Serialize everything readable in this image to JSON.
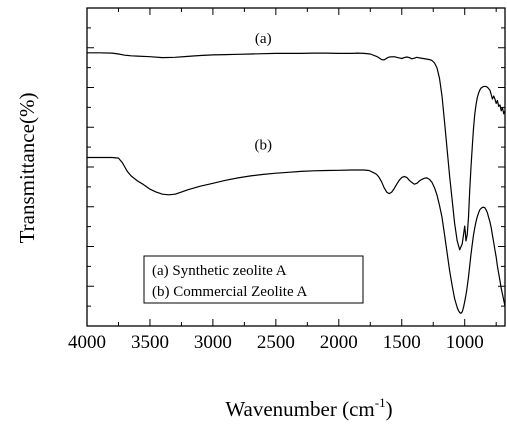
{
  "chart_data": {
    "type": "line",
    "title": "",
    "xlabel": "Wavenumber (cm",
    "xlabel_superscript": "-1",
    "xlabel_suffix": ")",
    "ylabel": "Transmittance(%)",
    "x_reversed": true,
    "xlim": [
      4000,
      680
    ],
    "ylim": [
      0,
      100
    ],
    "y_tick_labels_shown": false,
    "x_ticks": [
      4000,
      3500,
      3000,
      2500,
      2000,
      1500,
      1000
    ],
    "x_tick_labels": [
      "4000",
      "3500",
      "3000",
      "2500",
      "2000",
      "1500",
      "1000"
    ],
    "grid": false,
    "legend": {
      "placement": "bottom-center",
      "entries": [
        "(a) Synthetic zeolite A",
        "(b) Commercial Zeolite A"
      ]
    },
    "series": [
      {
        "name": "(a)",
        "color": "#000000",
        "label_at": [
          2600,
          92
        ],
        "x": [
          4000,
          3900,
          3800,
          3750,
          3700,
          3650,
          3600,
          3500,
          3400,
          3300,
          3200,
          3100,
          3000,
          2900,
          2800,
          2700,
          2600,
          2500,
          2400,
          2300,
          2200,
          2100,
          2000,
          1900,
          1850,
          1800,
          1750,
          1700,
          1680,
          1660,
          1640,
          1620,
          1600,
          1560,
          1520,
          1500,
          1480,
          1460,
          1440,
          1420,
          1400,
          1380,
          1360,
          1330,
          1300,
          1280,
          1260,
          1240,
          1220,
          1200,
          1180,
          1160,
          1140,
          1120,
          1100,
          1080,
          1060,
          1040,
          1020,
          1010,
          1000,
          995,
          990,
          980,
          970,
          960,
          950,
          940,
          930,
          920,
          910,
          900,
          890,
          880,
          870,
          860,
          850,
          840,
          830,
          820,
          810,
          800,
          790,
          780,
          770,
          760,
          750,
          740,
          730,
          720,
          710,
          700,
          690,
          680
        ],
        "y": [
          88.6,
          88.6,
          88.5,
          88.2,
          87.8,
          87.6,
          87.5,
          87.3,
          87.0,
          87.1,
          87.4,
          87.7,
          87.9,
          88.0,
          88.1,
          88.2,
          88.3,
          88.4,
          88.4,
          88.4,
          88.5,
          88.5,
          88.4,
          88.4,
          88.5,
          88.4,
          88.2,
          87.4,
          86.9,
          86.3,
          86.2,
          86.8,
          87.2,
          87.3,
          86.9,
          86.7,
          87.0,
          87.2,
          87.0,
          86.6,
          86.8,
          87.1,
          86.9,
          86.7,
          86.5,
          86.3,
          86.0,
          85.2,
          83.5,
          80.0,
          74.0,
          65.0,
          56.0,
          47.0,
          39.0,
          31.0,
          25.0,
          22.0,
          24.0,
          27.0,
          30.0,
          28.0,
          25.0,
          27.0,
          33.0,
          42.0,
          50.0,
          57.0,
          63.0,
          68.0,
          71.0,
          73.5,
          75.0,
          76.0,
          76.7,
          77.0,
          77.2,
          77.3,
          77.2,
          77.0,
          76.5,
          76.0,
          74.5,
          73.0,
          74.0,
          73.0,
          71.5,
          72.5,
          70.5,
          71.0,
          69.0,
          70.0,
          68.0,
          69.0
        ]
      },
      {
        "name": "(b)",
        "color": "#000000",
        "label_at": [
          2600,
          56
        ],
        "x": [
          4000,
          3900,
          3800,
          3750,
          3720,
          3700,
          3680,
          3650,
          3600,
          3550,
          3500,
          3450,
          3400,
          3350,
          3300,
          3250,
          3200,
          3100,
          3000,
          2900,
          2800,
          2700,
          2600,
          2500,
          2400,
          2300,
          2200,
          2100,
          2000,
          1900,
          1850,
          1800,
          1760,
          1720,
          1700,
          1680,
          1660,
          1640,
          1620,
          1600,
          1580,
          1560,
          1540,
          1520,
          1500,
          1480,
          1460,
          1440,
          1420,
          1400,
          1380,
          1360,
          1340,
          1320,
          1300,
          1280,
          1260,
          1240,
          1220,
          1200,
          1180,
          1160,
          1140,
          1120,
          1100,
          1080,
          1060,
          1050,
          1040,
          1030,
          1020,
          1010,
          1000,
          990,
          980,
          970,
          960,
          950,
          940,
          930,
          920,
          910,
          900,
          890,
          880,
          870,
          860,
          850,
          840,
          830,
          820,
          810,
          800,
          790,
          780,
          770,
          760,
          750,
          740,
          730,
          720,
          710,
          700,
          690,
          680
        ],
        "y": [
          53.2,
          53.2,
          53.2,
          53.0,
          51.5,
          50.0,
          48.5,
          47.0,
          45.3,
          44.0,
          42.5,
          41.5,
          40.8,
          40.6,
          40.8,
          41.5,
          42.3,
          43.5,
          44.5,
          45.5,
          46.3,
          47.0,
          47.5,
          47.9,
          48.2,
          48.5,
          48.7,
          48.8,
          48.9,
          49.0,
          49.0,
          49.0,
          48.8,
          48.0,
          47.5,
          46.5,
          45.0,
          43.0,
          41.5,
          41.0,
          41.5,
          42.7,
          44.2,
          45.5,
          46.5,
          46.8,
          46.5,
          45.5,
          44.8,
          44.2,
          44.5,
          45.3,
          45.8,
          46.2,
          46.3,
          45.8,
          44.8,
          43.0,
          40.5,
          37.0,
          33.0,
          27.0,
          21.0,
          15.0,
          10.0,
          5.5,
          2.5,
          1.5,
          0.8,
          0.5,
          1.0,
          2.5,
          4.5,
          6.8,
          9.5,
          12.8,
          16.5,
          20.5,
          24.0,
          27.0,
          29.5,
          31.5,
          33.2,
          34.5,
          35.5,
          36.0,
          36.3,
          36.4,
          36.2,
          35.5,
          34.5,
          33.0,
          31.5,
          29.5,
          27.0,
          24.5,
          22.0,
          19.5,
          16.5,
          14.0,
          11.5,
          9.0,
          7.0,
          5.0,
          3.0
        ]
      }
    ]
  }
}
